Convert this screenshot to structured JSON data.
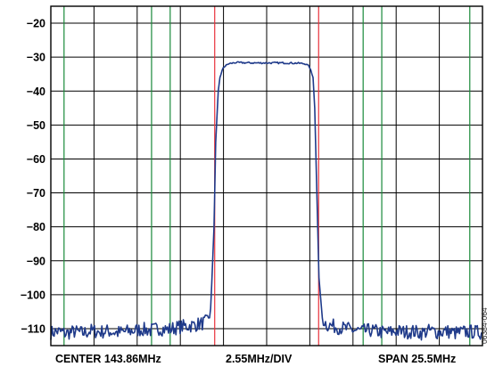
{
  "chart_data": {
    "type": "line",
    "title": "",
    "xlabel": "",
    "ylabel": "",
    "ylim": [
      -115,
      -15
    ],
    "y_ticks": [
      -20,
      -30,
      -40,
      -50,
      -60,
      -70,
      -80,
      -90,
      -100,
      -110
    ],
    "y_tick_labels": [
      "−20",
      "−30",
      "−40",
      "−50",
      "−60",
      "−70",
      "−80",
      "−90",
      "−100",
      "−110"
    ],
    "x_unit": "MHz",
    "x_center": 143.86,
    "x_per_div": 2.55,
    "x_span": 25.5,
    "xlim": [
      131.11,
      156.61
    ],
    "grid": true,
    "grid_divisions": {
      "x": 10,
      "y": 10
    },
    "markers": [
      {
        "type": "channel-edge",
        "color": "#e8313b",
        "x": [
          140.79,
          146.93
        ]
      },
      {
        "type": "adjacent-channel",
        "color": "#1a8a3a",
        "x": [
          131.89,
          137.06,
          138.16,
          149.56,
          150.66,
          155.86
        ]
      }
    ],
    "series": [
      {
        "color": "#1f3a8a",
        "x": [
          131.11,
          131.5,
          132.0,
          132.5,
          133.0,
          133.5,
          134.0,
          134.5,
          135.0,
          135.5,
          136.0,
          136.5,
          137.0,
          137.5,
          138.0,
          138.5,
          139.0,
          139.5,
          140.0,
          140.3,
          140.55,
          140.75,
          140.85,
          141.0,
          141.1,
          141.3,
          141.6,
          142.0,
          143.0,
          144.0,
          145.0,
          145.8,
          146.2,
          146.4,
          146.6,
          146.7,
          146.8,
          146.95,
          147.15,
          147.4,
          148.0,
          148.5,
          149.0,
          149.5,
          150.0,
          150.5,
          151.0,
          151.5,
          152.0,
          152.5,
          153.0,
          153.5,
          154.0,
          154.5,
          155.0,
          155.5,
          156.0,
          156.61
        ],
        "y": [
          -111.2,
          -110.8,
          -111.4,
          -110.9,
          -111.3,
          -110.6,
          -111.0,
          -110.7,
          -111.2,
          -110.9,
          -110.6,
          -110.2,
          -110.5,
          -109.9,
          -110.3,
          -109.7,
          -109.3,
          -109.0,
          -108.5,
          -108.0,
          -105.0,
          -80.0,
          -55.0,
          -40.0,
          -36.0,
          -33.0,
          -32.0,
          -31.6,
          -31.7,
          -31.7,
          -31.7,
          -31.8,
          -32.0,
          -33.0,
          -36.0,
          -45.0,
          -65.0,
          -95.0,
          -107.0,
          -108.8,
          -109.5,
          -110.0,
          -110.4,
          -110.8,
          -110.5,
          -110.9,
          -111.2,
          -110.7,
          -111.0,
          -110.8,
          -111.3,
          -110.6,
          -111.1,
          -110.8,
          -111.3,
          -111.0,
          -110.9,
          -111.2
        ]
      }
    ],
    "bottom_labels": {
      "left": "CENTER 143.86MHz",
      "center": "2.55MHz/DIV",
      "right": "SPAN 25.5MHz"
    },
    "figure_id": "06384-064"
  }
}
